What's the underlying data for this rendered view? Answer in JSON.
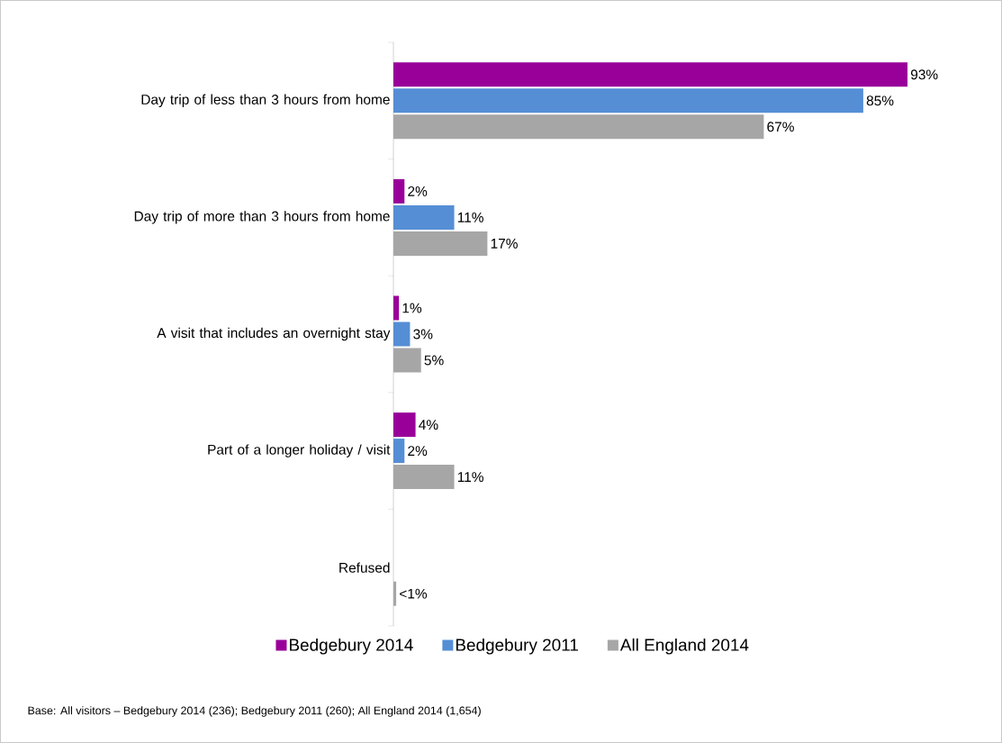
{
  "chart_data": {
    "type": "bar",
    "orientation": "horizontal",
    "legend": "bottom",
    "categories": [
      "Day trip of less than 3 hours from home",
      "Day trip of more than 3 hours from home",
      "A visit that includes an overnight stay",
      "Part of a longer holiday / visit",
      "Refused"
    ],
    "series": [
      {
        "name": "Bedgebury 2014",
        "color": "#990099",
        "values": [
          93,
          2,
          1,
          4,
          null
        ],
        "value_labels": [
          "93%",
          "2%",
          "1%",
          "4%",
          null
        ]
      },
      {
        "name": "Bedgebury 2011",
        "color": "#558ed5",
        "values": [
          85,
          11,
          3,
          2,
          null
        ],
        "value_labels": [
          "85%",
          "11%",
          "3%",
          "2%",
          null
        ]
      },
      {
        "name": "All England 2014",
        "color": "#a6a6a6",
        "values": [
          67,
          17,
          5,
          11,
          0.5
        ],
        "value_labels": [
          "67%",
          "17%",
          "5%",
          "11%",
          "<1%"
        ]
      }
    ],
    "annotations": [
      "Base: All visitors – Bedgebury 2014 (236); Bedgebury 2011 (260); All England 2014 (1,654)"
    ]
  }
}
